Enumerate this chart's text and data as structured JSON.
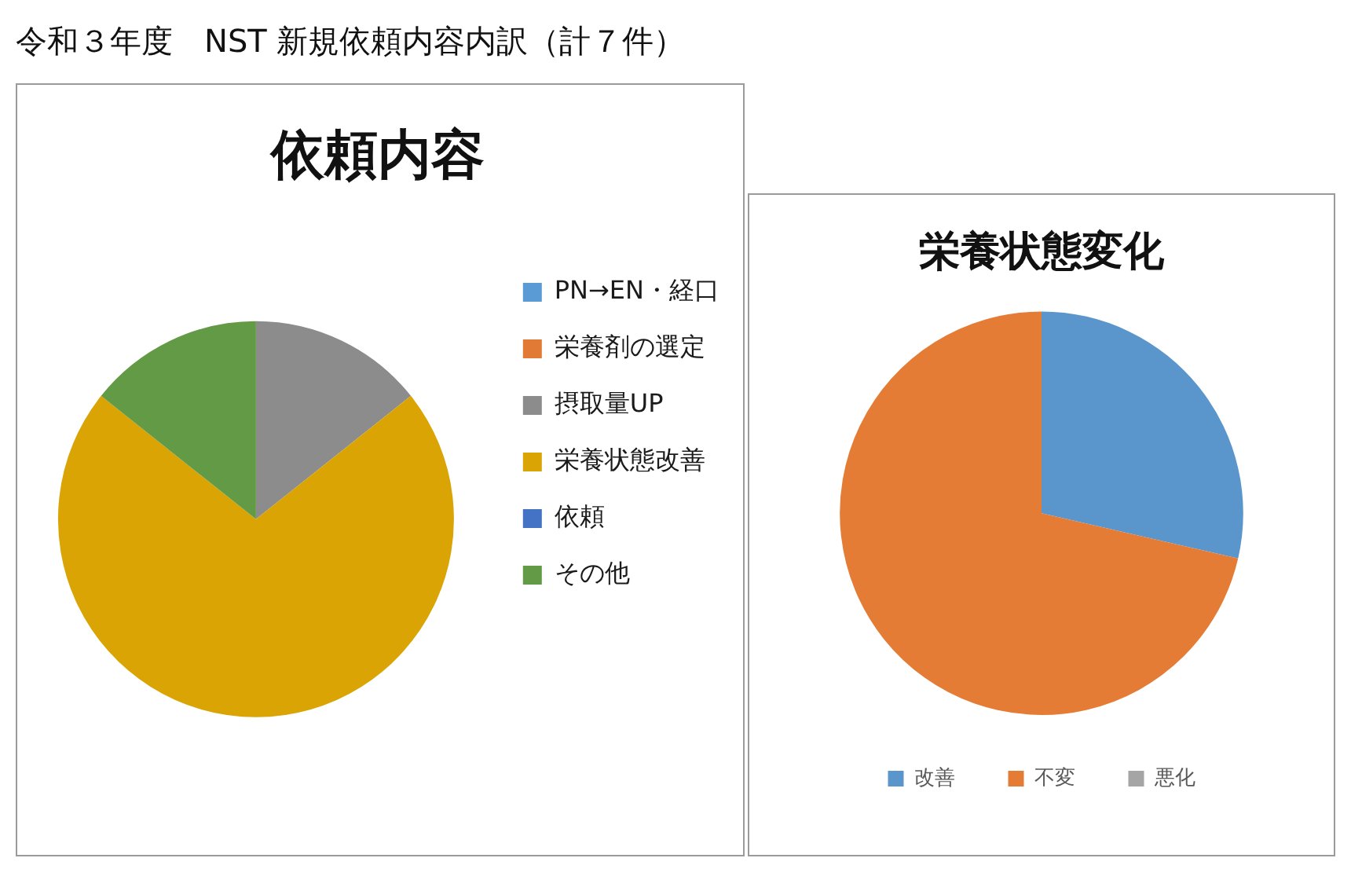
{
  "chart_data": [
    {
      "type": "pie",
      "title": "依頼内容",
      "annotations": [
        "令和３年度　NST 新規依頼内容内訳（計７件）"
      ],
      "categories": [
        "PN→EN・経口",
        "栄養剤の選定",
        "摂取量UP",
        "栄養状態改善",
        "依頼",
        "その他"
      ],
      "values": [
        0,
        0,
        14.3,
        71.4,
        0,
        14.3
      ],
      "colors": [
        "#5b9bd5",
        "#e07a34",
        "#8c8c8c",
        "#d9a404",
        "#4472c4",
        "#639a46"
      ],
      "legend": "right"
    },
    {
      "type": "pie",
      "title": "栄養状態変化",
      "categories": [
        "改善",
        "不変",
        "悪化"
      ],
      "values": [
        28.6,
        71.4,
        0
      ],
      "colors": [
        "#5a96cc",
        "#e57c36",
        "#a5a5a5"
      ],
      "legend": "bottom"
    }
  ]
}
